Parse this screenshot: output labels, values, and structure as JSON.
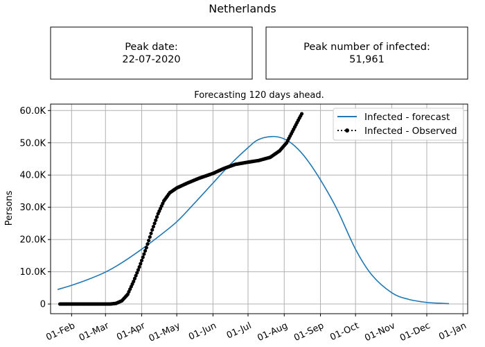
{
  "figure": {
    "title": "Netherlands",
    "peak_date_label": "Peak date:",
    "peak_date_value": "22-07-2020",
    "peak_count_label": "Peak number of infected:",
    "peak_count_value": "51,961"
  },
  "chart_data": {
    "type": "line",
    "title": "Forecasting 120 days ahead.",
    "xlabel": "",
    "ylabel": "Persons",
    "x_ticks": [
      "01-Feb",
      "01-Mar",
      "01-Apr",
      "01-May",
      "01-Jun",
      "01-Jul",
      "01-Aug",
      "01-Sep",
      "01-Oct",
      "01-Nov",
      "01-Dec",
      "01-Jan"
    ],
    "y_ticks": [
      "0",
      "10.0K",
      "20.0K",
      "30.0K",
      "40.0K",
      "50.0K",
      "60.0K"
    ],
    "ylim": [
      -3000,
      62000
    ],
    "xlim": [
      "2020-01-14",
      "2021-01-05"
    ],
    "grid": true,
    "legend_position": "top-right",
    "series": [
      {
        "name": "Infected - forecast",
        "color": "#1f77b4",
        "style": "solid-line",
        "points": [
          [
            "2020-01-20",
            4500
          ],
          [
            "2020-02-01",
            5800
          ],
          [
            "2020-02-15",
            7600
          ],
          [
            "2020-03-01",
            9900
          ],
          [
            "2020-03-15",
            12800
          ],
          [
            "2020-04-01",
            17000
          ],
          [
            "2020-04-15",
            20800
          ],
          [
            "2020-05-01",
            25500
          ],
          [
            "2020-05-15",
            30800
          ],
          [
            "2020-06-01",
            37500
          ],
          [
            "2020-06-15",
            43000
          ],
          [
            "2020-07-01",
            48500
          ],
          [
            "2020-07-10",
            51000
          ],
          [
            "2020-07-22",
            51961
          ],
          [
            "2020-08-01",
            51200
          ],
          [
            "2020-08-10",
            49000
          ],
          [
            "2020-08-20",
            45000
          ],
          [
            "2020-09-01",
            38500
          ],
          [
            "2020-09-15",
            29500
          ],
          [
            "2020-10-01",
            17000
          ],
          [
            "2020-10-15",
            9000
          ],
          [
            "2020-11-01",
            3500
          ],
          [
            "2020-11-15",
            1500
          ],
          [
            "2020-12-01",
            500
          ],
          [
            "2020-12-15",
            200
          ],
          [
            "2020-12-20",
            100
          ]
        ]
      },
      {
        "name": "Infected - Observed",
        "color": "#000000",
        "style": "dotted-markers",
        "points": [
          [
            "2020-01-22",
            0
          ],
          [
            "2020-02-01",
            0
          ],
          [
            "2020-02-15",
            0
          ],
          [
            "2020-03-01",
            0
          ],
          [
            "2020-03-05",
            0
          ],
          [
            "2020-03-10",
            200
          ],
          [
            "2020-03-15",
            1000
          ],
          [
            "2020-03-20",
            3000
          ],
          [
            "2020-03-25",
            7000
          ],
          [
            "2020-03-30",
            11500
          ],
          [
            "2020-04-05",
            17500
          ],
          [
            "2020-04-10",
            23000
          ],
          [
            "2020-04-15",
            28000
          ],
          [
            "2020-04-20",
            32000
          ],
          [
            "2020-04-25",
            34500
          ],
          [
            "2020-05-01",
            36000
          ],
          [
            "2020-05-10",
            37500
          ],
          [
            "2020-05-20",
            39000
          ],
          [
            "2020-06-01",
            40500
          ],
          [
            "2020-06-10",
            42000
          ],
          [
            "2020-06-20",
            43300
          ],
          [
            "2020-07-01",
            44000
          ],
          [
            "2020-07-10",
            44500
          ],
          [
            "2020-07-20",
            45500
          ],
          [
            "2020-07-28",
            47500
          ],
          [
            "2020-08-03",
            50000
          ],
          [
            "2020-08-08",
            53500
          ],
          [
            "2020-08-13",
            57000
          ],
          [
            "2020-08-16",
            59000
          ]
        ]
      }
    ]
  }
}
